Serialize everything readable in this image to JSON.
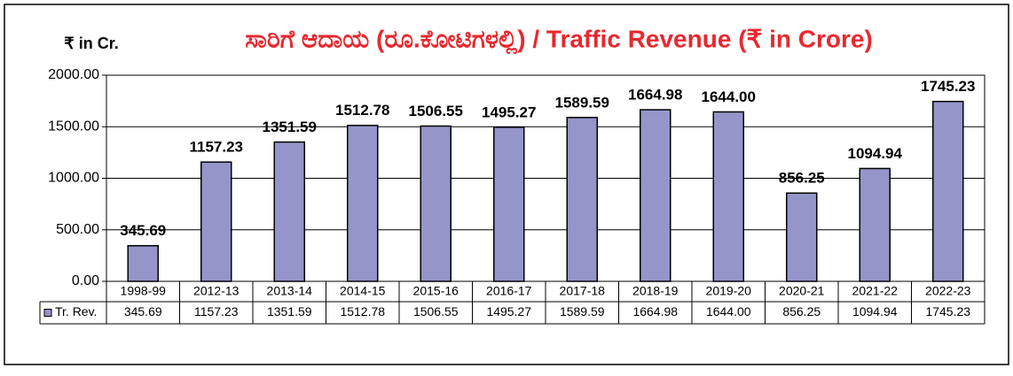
{
  "chart_data": {
    "type": "bar",
    "title": "ಸಾರಿಗೆ ಆದಾಯ (ರೂ.ಕೋಟಿಗಳಲ್ಲಿ) / Traffic Revenue (₹ in Crore)",
    "ylabel": "₹ in Cr.",
    "categories": [
      "1998-99",
      "2012-13",
      "2013-14",
      "2014-15",
      "2015-16",
      "2016-17",
      "2017-18",
      "2018-19",
      "2019-20",
      "2020-21",
      "2021-22",
      "2022-23"
    ],
    "series": [
      {
        "name": "Tr. Rev.",
        "color": "#9595c9",
        "values": [
          345.69,
          1157.23,
          1351.59,
          1512.78,
          1506.55,
          1495.27,
          1589.59,
          1664.98,
          1644.0,
          856.25,
          1094.94,
          1745.23
        ],
        "value_labels": [
          "345.69",
          "1157.23",
          "1351.59",
          "1512.78",
          "1506.55",
          "1495.27",
          "1589.59",
          "1664.98",
          "1644.00",
          "856.25",
          "1094.94",
          "1745.23"
        ]
      }
    ],
    "ylim": [
      0,
      2000
    ],
    "yticks": [
      {
        "value": 0,
        "label": "0.00"
      },
      {
        "value": 500,
        "label": "500.00"
      },
      {
        "value": 1000,
        "label": "1000.00"
      },
      {
        "value": 1500,
        "label": "1500.00"
      },
      {
        "value": 2000,
        "label": "2000.00"
      }
    ],
    "grid": true
  }
}
